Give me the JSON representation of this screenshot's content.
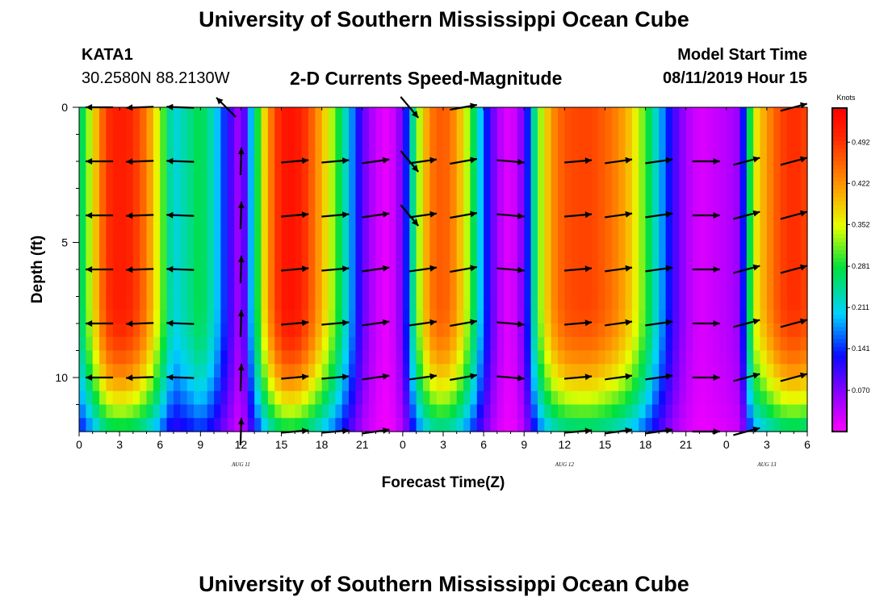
{
  "page": {
    "header_title": "University of Southern Mississippi Ocean Cube",
    "footer_title": "University of Southern Mississippi Ocean Cube",
    "station_name": "KATA1",
    "station_coords": "30.2580N 88.2130W",
    "chart_title": "2-D Currents Speed-Magnitude",
    "model_start_label": "Model Start Time",
    "model_start_value": "08/11/2019 Hour 15"
  },
  "chart_data": {
    "type": "heatmap",
    "title": "2-D Currents Speed-Magnitude",
    "xlabel": "Forecast Time(Z)",
    "ylabel": "Depth (ft)",
    "x_range_hours": [
      0,
      54
    ],
    "y_range_ft": [
      0,
      12
    ],
    "x_ticks": [
      {
        "h": 0,
        "label": "0"
      },
      {
        "h": 3,
        "label": "3"
      },
      {
        "h": 6,
        "label": "6"
      },
      {
        "h": 9,
        "label": "9"
      },
      {
        "h": 12,
        "label": "12"
      },
      {
        "h": 15,
        "label": "15"
      },
      {
        "h": 18,
        "label": "18"
      },
      {
        "h": 21,
        "label": "21"
      },
      {
        "h": 24,
        "label": "0"
      },
      {
        "h": 27,
        "label": "3"
      },
      {
        "h": 30,
        "label": "6"
      },
      {
        "h": 33,
        "label": "9"
      },
      {
        "h": 36,
        "label": "12"
      },
      {
        "h": 39,
        "label": "15"
      },
      {
        "h": 42,
        "label": "18"
      },
      {
        "h": 45,
        "label": "21"
      },
      {
        "h": 48,
        "label": "0"
      },
      {
        "h": 51,
        "label": "3"
      },
      {
        "h": 54,
        "label": "6"
      }
    ],
    "y_ticks": [
      {
        "d": 0,
        "label": "0"
      },
      {
        "d": 5,
        "label": "5"
      },
      {
        "d": 10,
        "label": "10"
      }
    ],
    "date_labels": [
      {
        "h": 12,
        "label": "AUG 11"
      },
      {
        "h": 36,
        "label": "AUG 12"
      },
      {
        "h": 51,
        "label": "AUG 13"
      }
    ],
    "colorbar": {
      "unit": "Knots",
      "min": 0.0,
      "max": 0.55,
      "tick_values": [
        0.492,
        0.422,
        0.352,
        0.281,
        0.211,
        0.141,
        0.07
      ],
      "tick_labels": [
        "0.492",
        "0.422",
        "0.352",
        "0.281",
        "0.211",
        "0.141",
        "0.070"
      ]
    },
    "surface_speed_profile": {
      "time_hours": [
        0,
        1,
        2,
        3,
        4,
        5,
        6,
        7,
        8,
        9,
        10,
        11,
        12,
        13,
        14,
        15,
        16,
        17,
        18,
        19,
        20,
        21,
        22,
        23,
        24,
        25,
        26,
        27,
        28,
        29,
        30,
        31,
        32,
        33,
        34,
        35,
        36,
        37,
        38,
        39,
        40,
        41,
        42,
        43,
        44,
        45,
        46,
        47,
        48,
        49,
        50,
        51,
        52,
        53,
        54
      ],
      "speed_knots": [
        0.24,
        0.36,
        0.49,
        0.52,
        0.5,
        0.44,
        0.33,
        0.21,
        0.24,
        0.28,
        0.22,
        0.12,
        0.04,
        0.24,
        0.42,
        0.52,
        0.53,
        0.48,
        0.4,
        0.31,
        0.2,
        0.09,
        0.03,
        0.01,
        0.08,
        0.3,
        0.44,
        0.47,
        0.42,
        0.31,
        0.16,
        0.05,
        0.01,
        0.08,
        0.3,
        0.42,
        0.47,
        0.48,
        0.48,
        0.46,
        0.43,
        0.38,
        0.3,
        0.2,
        0.11,
        0.05,
        0.02,
        0.03,
        0.04,
        0.06,
        0.35,
        0.42,
        0.48,
        0.5,
        0.48
      ]
    },
    "vector_rows_ft": [
      0,
      2,
      4,
      6,
      8,
      10,
      12
    ],
    "vector_columns": [
      {
        "h": 1.5,
        "dir_deg": 180,
        "rows": [
          0,
          1,
          2,
          3,
          4,
          5
        ]
      },
      {
        "h": 4.5,
        "dir_deg": 182,
        "rows": [
          0,
          1,
          2,
          3,
          4,
          5
        ]
      },
      {
        "h": 7.5,
        "dir_deg": 178,
        "rows": [
          0,
          1,
          2,
          3,
          4,
          5
        ]
      },
      {
        "h": 10.9,
        "dir_deg": 135,
        "rows": [
          0
        ]
      },
      {
        "h": 12.0,
        "dir_deg": 88,
        "rows": [
          1,
          2,
          3,
          4,
          5,
          6
        ]
      },
      {
        "h": 16.0,
        "dir_deg": 5,
        "rows": [
          1,
          2,
          3,
          4,
          5,
          6
        ]
      },
      {
        "h": 19.0,
        "dir_deg": 5,
        "rows": [
          1,
          2,
          3,
          4,
          5,
          6
        ]
      },
      {
        "h": 22.0,
        "dir_deg": 8,
        "rows": [
          1,
          2,
          3,
          4,
          5,
          6
        ]
      },
      {
        "h": 24.5,
        "dir_deg": -50,
        "rows": [
          0,
          1,
          2
        ]
      },
      {
        "h": 25.5,
        "dir_deg": 8,
        "rows": [
          1,
          2,
          3,
          4,
          5
        ]
      },
      {
        "h": 28.5,
        "dir_deg": 10,
        "rows": [
          0,
          1,
          2,
          3,
          4,
          5
        ]
      },
      {
        "h": 32.0,
        "dir_deg": -5,
        "rows": [
          1,
          2,
          3,
          4,
          5
        ]
      },
      {
        "h": 37.0,
        "dir_deg": 5,
        "rows": [
          1,
          2,
          3,
          4,
          5,
          6
        ]
      },
      {
        "h": 40.0,
        "dir_deg": 8,
        "rows": [
          1,
          2,
          3,
          4,
          5,
          6
        ]
      },
      {
        "h": 43.0,
        "dir_deg": 8,
        "rows": [
          1,
          2,
          3,
          4,
          5,
          6
        ]
      },
      {
        "h": 46.5,
        "dir_deg": 0,
        "rows": [
          1,
          2,
          3,
          4,
          5,
          6
        ]
      },
      {
        "h": 49.5,
        "dir_deg": 15,
        "rows": [
          1,
          2,
          3,
          4,
          5,
          6
        ]
      },
      {
        "h": 53.0,
        "dir_deg": 15,
        "rows": [
          0,
          1,
          2,
          3,
          4,
          5
        ]
      }
    ]
  }
}
